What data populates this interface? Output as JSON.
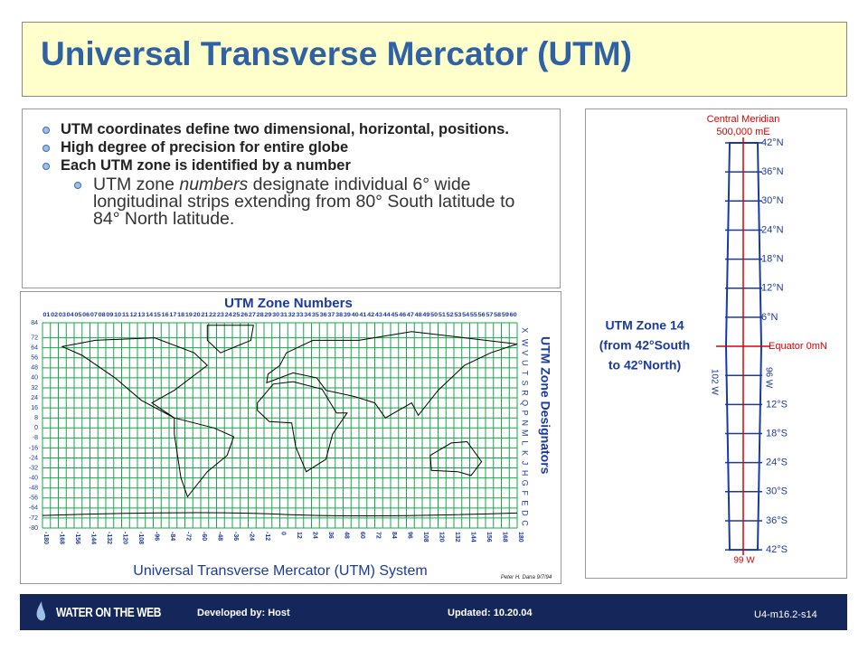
{
  "title": "Universal Transverse Mercator (UTM)",
  "bullets": [
    "UTM coordinates define two dimensional, horizontal, positions.",
    "High degree of precision for entire globe",
    "Each UTM zone is identified by a number"
  ],
  "sub_bullet": [
    "UTM zone ",
    "numbers",
    " designate individual 6° wide longitudinal strips extending from 80° South latitude to 84° North latitude."
  ],
  "map": {
    "title": "UTM Zone Numbers",
    "zone_numbers": [
      "01",
      "02",
      "03",
      "04",
      "05",
      "06",
      "07",
      "08",
      "09",
      "10",
      "11",
      "12",
      "13",
      "14",
      "15",
      "16",
      "17",
      "18",
      "19",
      "20",
      "21",
      "22",
      "23",
      "24",
      "25",
      "26",
      "27",
      "28",
      "29",
      "30",
      "31",
      "32",
      "33",
      "34",
      "35",
      "36",
      "37",
      "38",
      "39",
      "40",
      "41",
      "42",
      "43",
      "44",
      "45",
      "46",
      "47",
      "48",
      "49",
      "50",
      "51",
      "52",
      "53",
      "54",
      "55",
      "56",
      "57",
      "58",
      "59",
      "60"
    ],
    "latitudes": [
      "84",
      "72",
      "64",
      "56",
      "48",
      "40",
      "32",
      "24",
      "16",
      "8",
      "0",
      "-8",
      "-16",
      "-24",
      "-32",
      "-40",
      "-48",
      "-56",
      "-64",
      "-72",
      "-80"
    ],
    "longitudes": [
      "-180",
      "-168",
      "-156",
      "-144",
      "-132",
      "-120",
      "-108",
      "-96",
      "-84",
      "-72",
      "-60",
      "-48",
      "-36",
      "-24",
      "-12",
      "0",
      "12",
      "24",
      "36",
      "48",
      "60",
      "72",
      "84",
      "96",
      "108",
      "120",
      "132",
      "144",
      "156",
      "168",
      "180"
    ],
    "designators_title": "UTM Zone Designators",
    "designators": [
      "X",
      "W",
      "V",
      "U",
      "T",
      "S",
      "R",
      "Q",
      "P",
      "N",
      "M",
      "L",
      "K",
      "J",
      "H",
      "G",
      "F",
      "E",
      "D",
      "C"
    ],
    "caption": "Universal Transverse Mercator (UTM) System",
    "credit": "Peter H. Dana 9/7/94"
  },
  "zone_diagram": {
    "meridian_label": [
      "Central Meridian",
      "500,000 mE"
    ],
    "north_labels": [
      "42°N",
      "36°N",
      "30°N",
      "24°N",
      "18°N",
      "12°N",
      "6°N"
    ],
    "equator_label": "Equator 0mN",
    "south_labels": [
      "12°S",
      "18°S",
      "24°S",
      "30°S",
      "36°S",
      "42°S"
    ],
    "west_label": "102 W",
    "east_label": "96 W",
    "center_label": "99 W",
    "zone_title": [
      "UTM Zone 14",
      "(from 42°South",
      "to 42°North)"
    ]
  },
  "footer": {
    "logo": "WATER ON THE WEB",
    "developed": "Developed by: Host",
    "updated": "Updated: 10.20.04",
    "slide_id": "U4-m16.2-s14"
  }
}
